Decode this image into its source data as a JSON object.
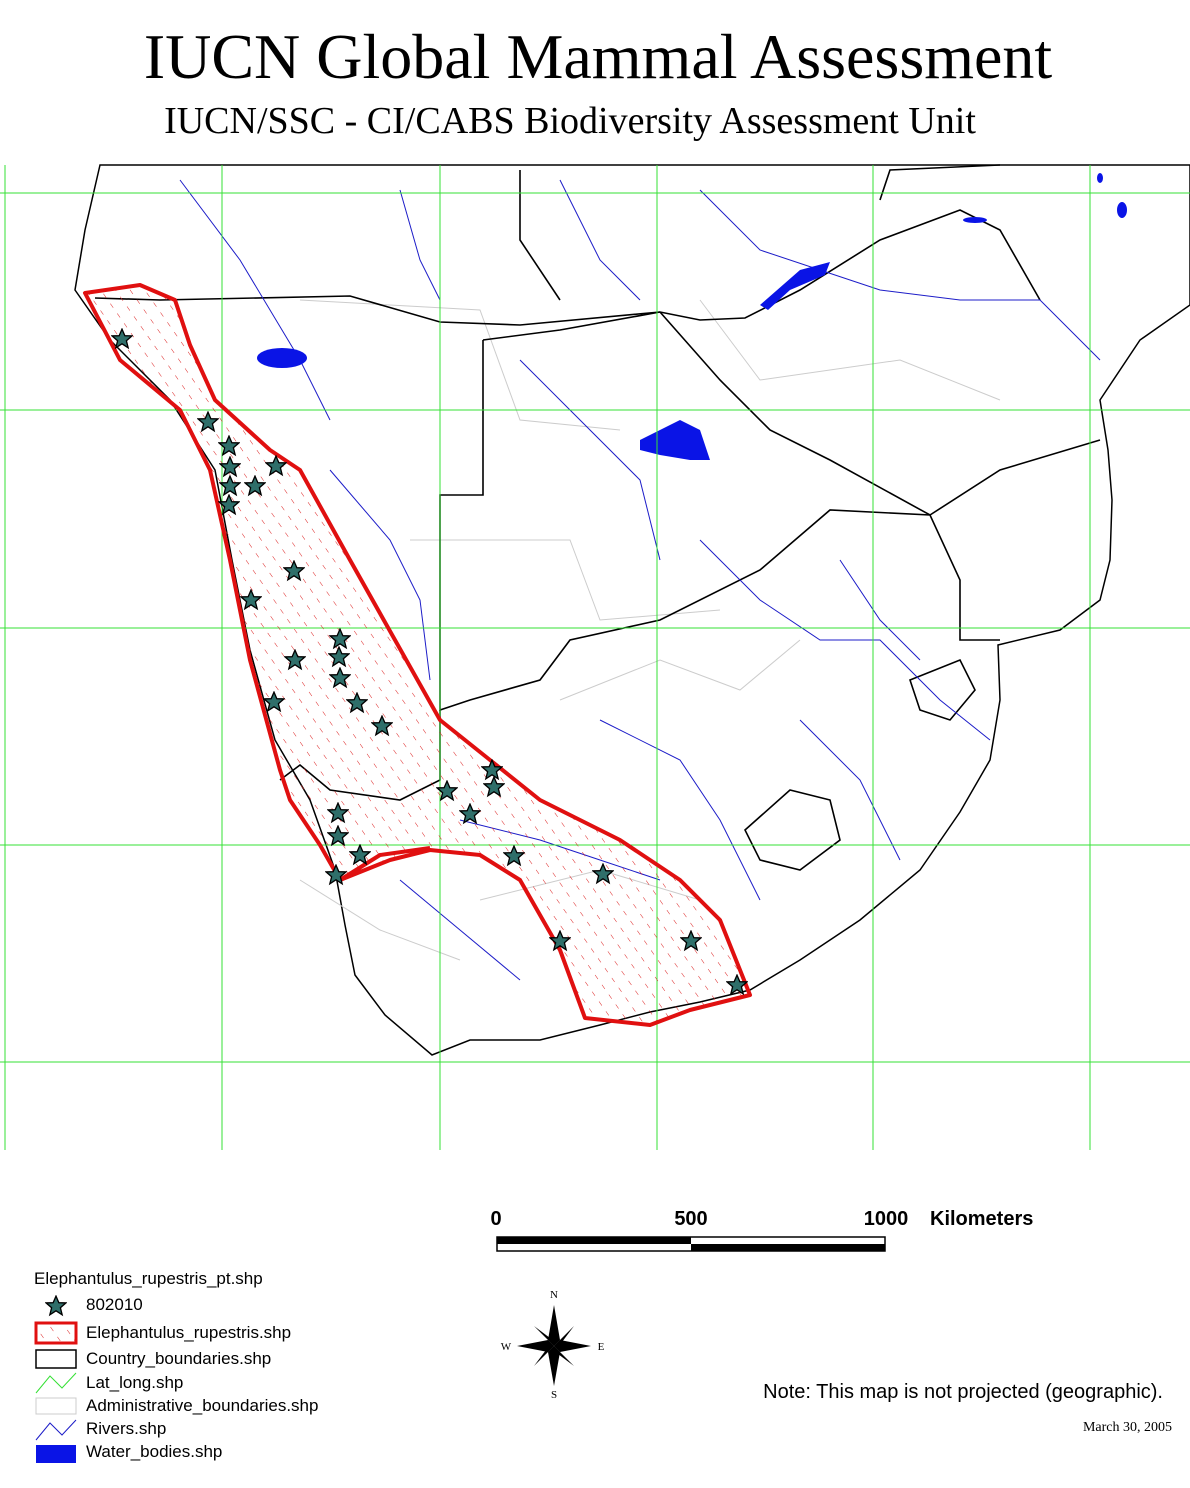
{
  "header": {
    "title": "IUCN Global Mammal Assessment",
    "subtitle": "IUCN/SSC - CI/CABS Biodiversity Assessment Unit"
  },
  "scale_bar": {
    "labels": [
      "0",
      "500",
      "1000"
    ],
    "unit": "Kilometers"
  },
  "compass": {
    "north": "N",
    "south": "S",
    "east": "E",
    "west": "W"
  },
  "legend": {
    "title": "Elephantulus_rupestris_pt.shp",
    "items": [
      "802010",
      "Elephantulus_rupestris.shp",
      "Country_boundaries.shp",
      "Lat_long.shp",
      "Administrative_boundaries.shp",
      "Rivers.shp",
      "Water_bodies.shp"
    ]
  },
  "note": "Note: This map is not projected (geographic).",
  "date": "March 30, 2005"
}
